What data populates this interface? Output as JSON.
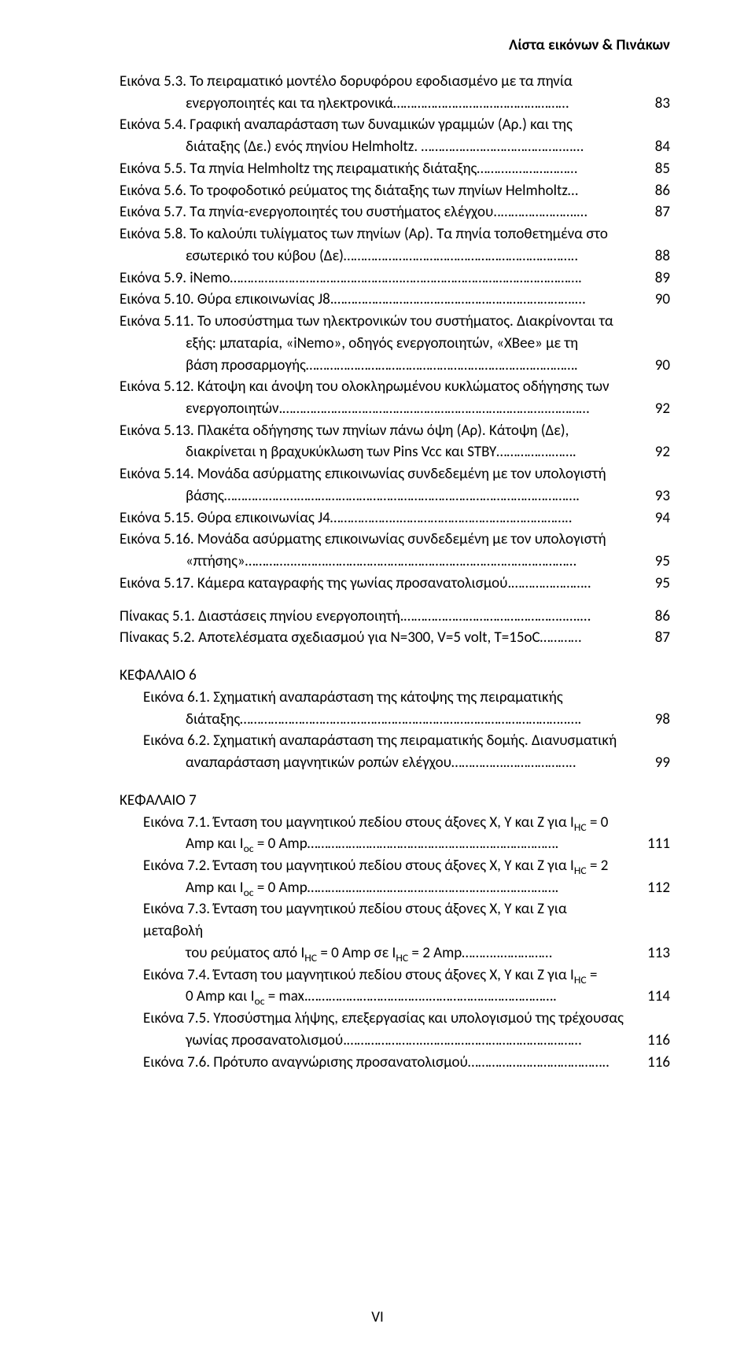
{
  "running_head": "Λίστα εικόνων & Πινάκων",
  "page_number": "VI",
  "entries": [
    {
      "label": "Εικόνα 5.3. Το πειραματικό μοντέλο δορυφόρου εφοδιασμένο με τα πηνία",
      "page": ""
    },
    {
      "label_indent": "ενεργοποιητές και τα ηλεκτρονικά……………………………………………",
      "page": "83"
    },
    {
      "label": "Εικόνα 5.4. Γραφική αναπαράσταση των δυναμικών γραμμών (Αρ.) και της",
      "page": ""
    },
    {
      "label_indent": "διάταξης (Δε.) ενός πηνίου Helmholtz. ……………………………………..…",
      "page": "84"
    },
    {
      "label": "Εικόνα 5.5. Τα πηνία Helmholtz της πειραματικής διάταξης………..………………",
      "page": "85"
    },
    {
      "label": "Εικόνα 5.6. Το τροφοδοτικό ρεύματος της διάταξης των πηνίων Helmholtz…",
      "page": "86"
    },
    {
      "label": "Εικόνα 5.7. Τα πηνία-ενεργοποιητές του συστήματος ελέγχου..………………….…",
      "page": "87"
    },
    {
      "label": "Εικόνα 5.8. Το καλούπι τυλίγματος των πηνίων (Αρ). Τα πηνία τοποθετημένα στο",
      "page": ""
    },
    {
      "label_indent": "εσωτερικό του κύβου (Δε)…………………………………………………………..",
      "page": "88"
    },
    {
      "label": "Εικόνα 5.9. iNemo…………………………………………..…………………………………………….",
      "page": "89"
    },
    {
      "label": "Εικόνα 5.10. Θύρα επικοινωνίας J8.…………………………………………………………….…",
      "page": "90"
    },
    {
      "label": "Εικόνα 5.11. Το υποσύστημα των ηλεκτρονικών του συστήματος. Διακρίνονται τα",
      "page": ""
    },
    {
      "label_indent": "εξής: μπαταρία, «iNemo», οδηγός ενεργοποιητών, «XBee» με τη",
      "page": ""
    },
    {
      "label_indent": "βάση προσαρμογής…………………………………………………………………….",
      "page": "90"
    },
    {
      "label": "Εικόνα 5.12. Κάτοψη και άνοψη του ολοκληρωμένου κυκλώματος οδήγησης των",
      "page": ""
    },
    {
      "label_indent": "ενεργοποιητών.…………………………………………………………………..…………",
      "page": "92"
    },
    {
      "label": "Εικόνα 5.13. Πλακέτα οδήγησης των πηνίων πάνω όψη (Αρ). Κάτοψη (Δε),",
      "page": ""
    },
    {
      "label_indent": "διακρίνεται η βραχυκύκλωση των Pins Vcc και STBY…………….…….",
      "page": "92"
    },
    {
      "label": "Εικόνα 5.14. Μονάδα ασύρματης επικοινωνίας συνδεδεμένη με τον υπολογιστή",
      "page": ""
    },
    {
      "label_indent": "βάσης………………...……………………………………………………………………….",
      "page": "93"
    },
    {
      "label": "Εικόνα 5.15. Θύρα επικοινωνίας J4………………..…………………………………………..",
      "page": "94"
    },
    {
      "label": "Εικόνα 5.16. Μονάδα ασύρματης επικοινωνίας συνδεδεμένη με τον υπολογιστή",
      "page": ""
    },
    {
      "label_indent": "«πτήσης»…………..……….………………………………………………………………",
      "page": "95"
    },
    {
      "label": "Εικόνα 5.17. Κάμερα καταγραφής της γωνίας προσανατολισμού.…………………..",
      "page": "95"
    }
  ],
  "tables": [
    {
      "label": "Πίνακας 5.1. Διαστάσεις πηνίου ενεργοποιητή.………………………………………..….…",
      "page": "86"
    },
    {
      "label": "Πίνακας 5.2. Αποτελέσματα σχεδιασμού για N=300, V=5 volt, T=15oC…………",
      "page": "87"
    }
  ],
  "ch6_title": "ΚΕΦΑΛΑΙΟ 6",
  "ch6": [
    {
      "label": "Εικόνα 6.1. Σχηματική αναπαράσταση της κάτοψης της πειραματικής",
      "page": ""
    },
    {
      "label_indent": "διάταξης…………………………………………………………………………………..….",
      "page": "98"
    },
    {
      "label": "Εικόνα 6.2. Σχηματική αναπαράσταση της πειραματικής δομής. Διανυσματική",
      "page": ""
    },
    {
      "label_indent": "αναπαράσταση μαγνητικών ροπών ελέγχου…………….………………..",
      "page": "99"
    }
  ],
  "ch7_title": "ΚΕΦΑΛΑΙΟ 7",
  "ch7": [
    {
      "html": "Εικόνα 7.1. Ένταση του μαγνητικού πεδίου στους άξονες X, Y και Z για I<sub>HC</sub> = 0",
      "page": ""
    },
    {
      "html_indent": "Amp και I<sub>oc</sub> = 0 Amp……………………………………………………………….",
      "page": "111"
    },
    {
      "html": "Εικόνα 7.2. Ένταση του μαγνητικού πεδίου στους άξονες X, Y και Z για I<sub>HC</sub> = 2",
      "page": ""
    },
    {
      "html_indent": "Amp και I<sub>oc</sub> = 0 Amp……………………………………………………………….",
      "page": "112"
    },
    {
      "html": "Εικόνα 7.3. Ένταση του μαγνητικού πεδίου στους άξονες X, Y και Z για μεταβολή",
      "page": ""
    },
    {
      "html_indent": "του ρεύματος από I<sub>HC</sub> = 0 Amp σε I<sub>HC</sub> = 2 Amp………..……………",
      "page": "113"
    },
    {
      "html": "Εικόνα 7.4. Ένταση του μαγνητικού πεδίου στους άξονες X, Y και Z για I<sub>HC</sub> =",
      "page": ""
    },
    {
      "html_indent": "0 Amp και I<sub>oc</sub> = max.……………………………..……………………………….",
      "page": "114"
    },
    {
      "label": "Εικόνα 7.5. Υποσύστημα λήψης, επεξεργασίας και υπολογισμού της τρέχουσας",
      "page": ""
    },
    {
      "label_indent": "γωνίας προσανατολισμού.…………………..………………………………………",
      "page": "116"
    },
    {
      "label": "Εικόνα 7.6. Πρότυπο αναγνώρισης προσανατολισμού…………………………………..",
      "page": "116"
    }
  ]
}
